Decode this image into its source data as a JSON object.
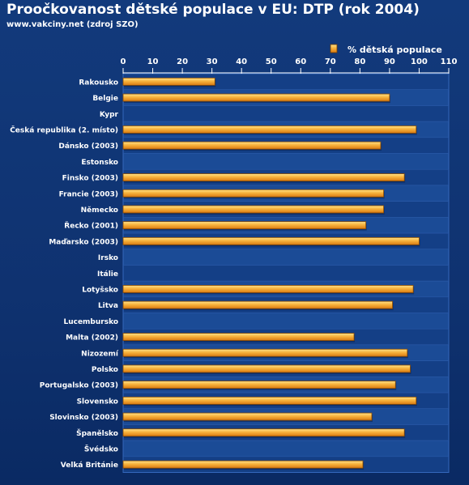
{
  "header": {
    "title": "Proočkovanost dětské populace v EU: DTP (rok 2004)",
    "subtitle": "www.vakciny.net (zdroj SZO)"
  },
  "colors": {
    "background": "#0f3270",
    "bar": "#f2a02a",
    "bar_highlight": "#ffd86a",
    "grid": "#2d5fb0"
  },
  "chart_data": {
    "type": "bar",
    "orientation": "horizontal",
    "xlim": [
      0,
      110
    ],
    "xticks": [
      0,
      10,
      20,
      30,
      40,
      50,
      60,
      70,
      80,
      90,
      100,
      110
    ],
    "legend": "top-right",
    "grid": true,
    "series": [
      {
        "name": "% dětská populace",
        "values": [
          31,
          90,
          null,
          99,
          87,
          null,
          95,
          88,
          88,
          82,
          100,
          null,
          null,
          98,
          91,
          null,
          78,
          96,
          97,
          92,
          99,
          84,
          95,
          null,
          81
        ]
      }
    ],
    "categories": [
      "Rakousko",
      "Belgie",
      "Kypr",
      "Česká republika (2. místo)",
      "Dánsko (2003)",
      "Estonsko",
      "Finsko (2003)",
      "Francie (2003)",
      "Německo",
      "Řecko (2001)",
      "Maďarsko (2003)",
      "Irsko",
      "Itálie",
      "Lotyšsko",
      "Litva",
      "Lucembursko",
      "Malta (2002)",
      "Nizozemí",
      "Polsko",
      "Portugalsko (2003)",
      "Slovensko",
      "Slovinsko (2003)",
      "Španělsko",
      "Švédsko",
      "Velká Británie"
    ]
  }
}
